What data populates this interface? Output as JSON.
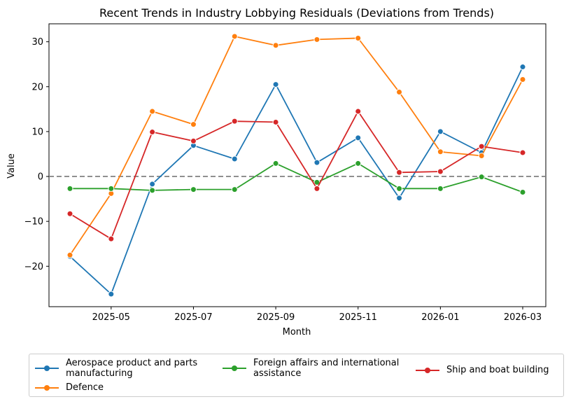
{
  "chart_data": {
    "type": "line",
    "title": "Recent Trends in Industry Lobbying Residuals (Deviations from Trends)",
    "xlabel": "Month",
    "ylabel": "Value",
    "x": [
      "2025-04",
      "2025-05",
      "2025-06",
      "2025-07",
      "2025-08",
      "2025-09",
      "2025-10",
      "2025-11",
      "2025-12",
      "2026-01",
      "2026-02",
      "2026-03"
    ],
    "xticks": [
      "2025-05",
      "2025-07",
      "2025-09",
      "2025-11",
      "2026-01",
      "2026-03"
    ],
    "yticks": [
      -20,
      -10,
      0,
      10,
      20,
      30
    ],
    "ylim": [
      -29,
      34
    ],
    "grid": false,
    "reference_line": {
      "y": 0,
      "style": "dashed",
      "color": "#808080"
    },
    "legend_position": "below",
    "series": [
      {
        "name": "Aerospace product and parts manufacturing",
        "color": "#1f77b4",
        "values": [
          -17.8,
          -26.2,
          -1.7,
          6.9,
          3.9,
          20.5,
          3.1,
          8.6,
          -4.8,
          10.0,
          5.3,
          24.4
        ]
      },
      {
        "name": "Defence",
        "color": "#ff7f0e",
        "values": [
          -17.5,
          -3.8,
          14.5,
          11.6,
          31.2,
          29.2,
          30.5,
          30.8,
          18.8,
          5.5,
          4.6,
          21.6
        ]
      },
      {
        "name": "Foreign affairs and international assistance",
        "color": "#2ca02c",
        "values": [
          -2.7,
          -2.7,
          -3.1,
          -2.9,
          -2.9,
          2.9,
          -1.3,
          2.9,
          -2.7,
          -2.7,
          -0.1,
          -3.5
        ]
      },
      {
        "name": "Ship and boat building",
        "color": "#d62728",
        "values": [
          -8.3,
          -13.9,
          9.9,
          7.9,
          12.3,
          12.1,
          -2.7,
          14.5,
          0.9,
          1.1,
          6.7,
          5.3
        ]
      }
    ]
  }
}
